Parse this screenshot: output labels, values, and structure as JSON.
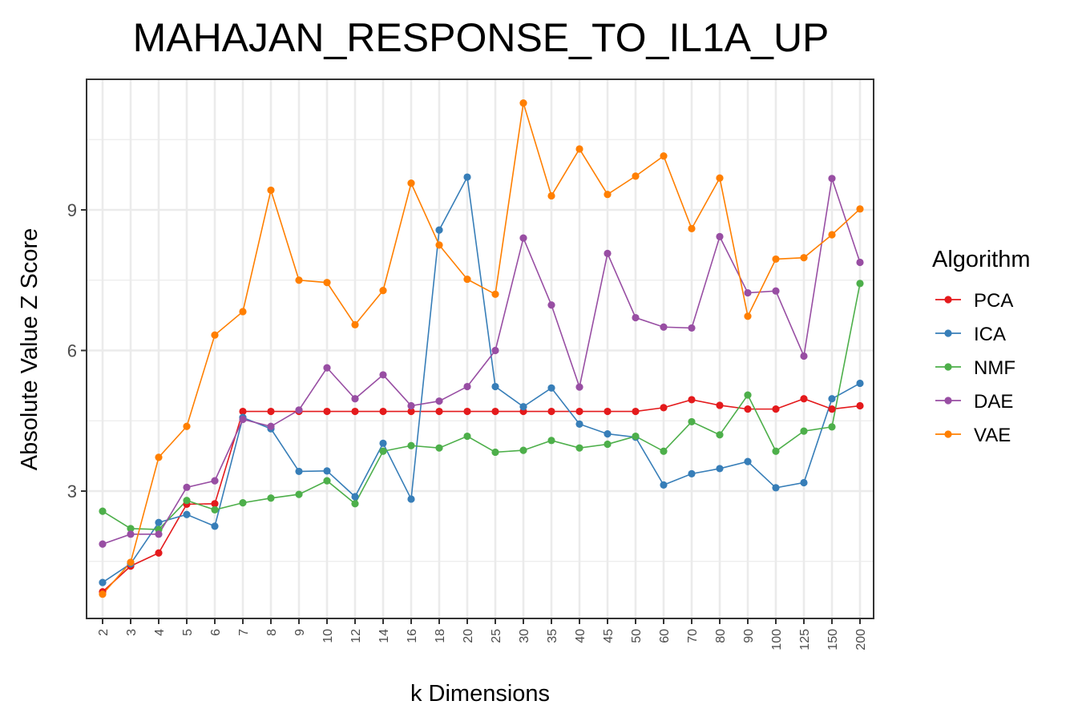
{
  "chart_data": {
    "type": "line",
    "title": "MAHAJAN_RESPONSE_TO_IL1A_UP",
    "xlabel": "k Dimensions",
    "ylabel": "Absolute Value Z Score",
    "categories": [
      "2",
      "3",
      "4",
      "5",
      "6",
      "7",
      "8",
      "9",
      "10",
      "12",
      "14",
      "16",
      "18",
      "20",
      "25",
      "30",
      "35",
      "40",
      "45",
      "50",
      "60",
      "70",
      "80",
      "90",
      "100",
      "125",
      "150",
      "200"
    ],
    "yticks": [
      3,
      6,
      9
    ],
    "ylim": [
      0.6,
      11.6
    ],
    "grid": true,
    "legend_title": "Algorithm",
    "legend_position": "right",
    "series": [
      {
        "name": "PCA",
        "color": "#E41A1C",
        "values": [
          0.85,
          1.4,
          1.68,
          2.72,
          2.73,
          4.7,
          4.7,
          4.7,
          4.7,
          4.7,
          4.7,
          4.7,
          4.7,
          4.7,
          4.7,
          4.7,
          4.7,
          4.7,
          4.7,
          4.7,
          4.78,
          4.95,
          4.83,
          4.75,
          4.75,
          4.97,
          4.75,
          4.82
        ]
      },
      {
        "name": "ICA",
        "color": "#377EB8",
        "values": [
          1.05,
          1.45,
          2.33,
          2.5,
          2.25,
          4.57,
          4.33,
          3.42,
          3.43,
          2.88,
          4.02,
          2.83,
          8.57,
          9.7,
          5.23,
          4.8,
          5.2,
          4.43,
          4.22,
          4.15,
          3.13,
          3.37,
          3.48,
          3.63,
          3.07,
          3.18,
          4.97,
          5.3
        ]
      },
      {
        "name": "NMF",
        "color": "#4DAF4A",
        "values": [
          2.57,
          2.2,
          2.18,
          2.8,
          2.6,
          2.75,
          2.85,
          2.93,
          3.22,
          2.73,
          3.85,
          3.97,
          3.92,
          4.17,
          3.83,
          3.87,
          4.08,
          3.92,
          4.0,
          4.17,
          3.85,
          4.48,
          4.2,
          5.05,
          3.85,
          4.28,
          4.37,
          7.43
        ]
      },
      {
        "name": "DAE",
        "color": "#984EA3",
        "values": [
          1.87,
          2.08,
          2.08,
          3.08,
          3.22,
          4.53,
          4.38,
          4.73,
          5.63,
          4.97,
          5.48,
          4.82,
          4.92,
          5.23,
          6.0,
          8.4,
          6.97,
          5.22,
          8.07,
          6.7,
          6.5,
          6.48,
          8.43,
          7.23,
          7.27,
          5.88,
          9.67,
          7.88
        ]
      },
      {
        "name": "VAE",
        "color": "#FF7F00",
        "values": [
          0.8,
          1.48,
          3.72,
          4.38,
          6.33,
          6.83,
          9.42,
          7.5,
          7.45,
          6.55,
          7.28,
          9.57,
          8.25,
          7.52,
          7.2,
          11.28,
          9.3,
          10.3,
          9.33,
          9.72,
          10.15,
          8.6,
          9.68,
          6.73,
          7.95,
          7.98,
          8.47,
          9.02
        ]
      }
    ]
  }
}
